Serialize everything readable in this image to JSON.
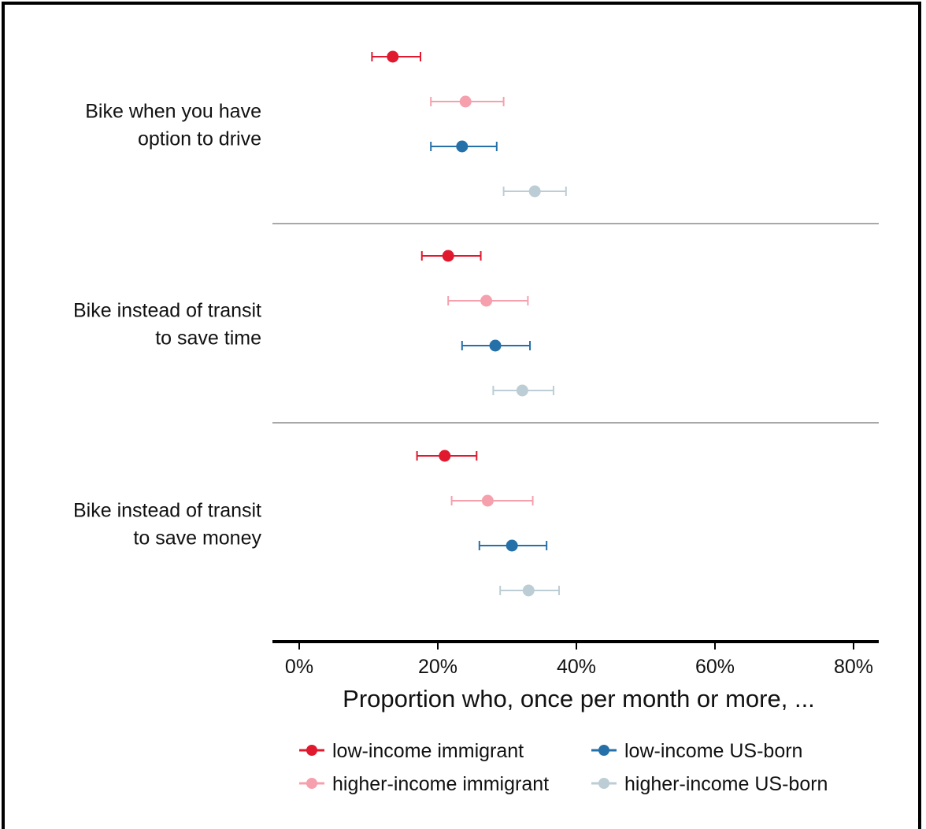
{
  "chart_data": {
    "type": "dot-errorbar",
    "title": "",
    "xlabel": "Proportion who, once per month or more, ...",
    "ylabel": "",
    "xlim": [
      0,
      0.8
    ],
    "xticks": [
      0,
      0.2,
      0.4,
      0.6,
      0.8
    ],
    "xtick_labels": [
      "0%",
      "20%",
      "40%",
      "60%",
      "80%"
    ],
    "grid": false,
    "legend_position": "bottom",
    "categories": [
      {
        "id": "drive",
        "lines": [
          "Bike when you have",
          "option to drive"
        ]
      },
      {
        "id": "time",
        "lines": [
          "Bike instead of transit",
          "to save time"
        ]
      },
      {
        "id": "money",
        "lines": [
          "Bike instead of transit",
          "to save money"
        ]
      }
    ],
    "series": [
      {
        "name": "low-income immigrant",
        "color": "#e0192e",
        "opacity": 1.0,
        "values": [
          0.135,
          0.215,
          0.21
        ],
        "lower": [
          0.105,
          0.177,
          0.17
        ],
        "upper": [
          0.175,
          0.262,
          0.256
        ]
      },
      {
        "name": "higher-income immigrant",
        "color": "#f4909e",
        "opacity": 0.85,
        "values": [
          0.24,
          0.27,
          0.272
        ],
        "lower": [
          0.19,
          0.215,
          0.22
        ],
        "upper": [
          0.295,
          0.33,
          0.337
        ]
      },
      {
        "name": "low-income US-born",
        "color": "#2570a8",
        "opacity": 1.0,
        "values": [
          0.235,
          0.283,
          0.307
        ],
        "lower": [
          0.19,
          0.235,
          0.26
        ],
        "upper": [
          0.285,
          0.333,
          0.357
        ]
      },
      {
        "name": "higher-income US-born",
        "color": "#b9cbd3",
        "opacity": 0.95,
        "values": [
          0.34,
          0.322,
          0.331
        ],
        "lower": [
          0.295,
          0.28,
          0.29
        ],
        "upper": [
          0.385,
          0.367,
          0.375
        ]
      }
    ],
    "legend": [
      {
        "label": "low-income immigrant",
        "series": 0
      },
      {
        "label": "low-income US-born",
        "series": 2
      },
      {
        "label": "higher-income immigrant",
        "series": 1
      },
      {
        "label": "higher-income US-born",
        "series": 3
      }
    ]
  }
}
